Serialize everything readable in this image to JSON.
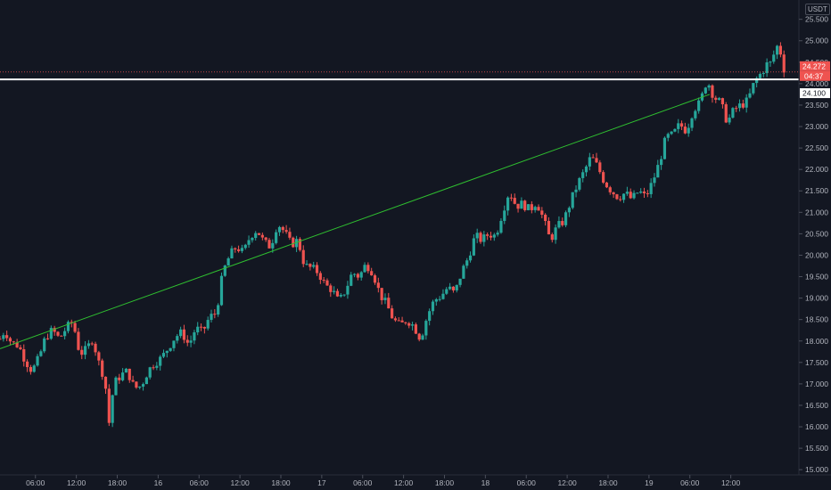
{
  "chart_data": {
    "type": "candlestick",
    "instrument_currency": "USDT",
    "y_axis": {
      "ylim": [
        14.9,
        25.95
      ],
      "ticks": [
        "15.000",
        "15.500",
        "16.000",
        "16.500",
        "17.000",
        "17.500",
        "18.000",
        "18.500",
        "19.000",
        "19.500",
        "20.000",
        "20.500",
        "21.000",
        "21.500",
        "22.000",
        "22.500",
        "23.000",
        "23.500",
        "24.000",
        "24.500",
        "25.000",
        "25.500"
      ],
      "position": "right"
    },
    "x_axis": {
      "ticks": [
        {
          "label": "06:00",
          "hour": 6
        },
        {
          "label": "12:00",
          "hour": 12
        },
        {
          "label": "18:00",
          "hour": 18
        },
        {
          "label": "16",
          "hour": 24
        },
        {
          "label": "06:00",
          "hour": 30
        },
        {
          "label": "12:00",
          "hour": 36
        },
        {
          "label": "18:00",
          "hour": 42
        },
        {
          "label": "17",
          "hour": 48
        },
        {
          "label": "06:00",
          "hour": 54
        },
        {
          "label": "12:00",
          "hour": 60
        },
        {
          "label": "18:00",
          "hour": 66
        },
        {
          "label": "18",
          "hour": 72
        },
        {
          "label": "06:00",
          "hour": 78
        },
        {
          "label": "12:00",
          "hour": 84
        },
        {
          "label": "18:00",
          "hour": 90
        },
        {
          "label": "19",
          "hour": 96
        },
        {
          "label": "06:00",
          "hour": 102
        },
        {
          "label": "12:00",
          "hour": 108
        }
      ],
      "xlim": [
        0.8,
        115.9
      ]
    },
    "price_path": [
      [
        0.8,
        18.05
      ],
      [
        1.5,
        18.25
      ],
      [
        2.5,
        17.95
      ],
      [
        3.5,
        17.9
      ],
      [
        4.5,
        17.55
      ],
      [
        5.5,
        17.3
      ],
      [
        6.5,
        17.6
      ],
      [
        7.5,
        18.1
      ],
      [
        8.5,
        18.25
      ],
      [
        9.5,
        18.05
      ],
      [
        10.5,
        18.3
      ],
      [
        11.5,
        18.45
      ],
      [
        12.5,
        17.7
      ],
      [
        13.5,
        17.8
      ],
      [
        14.5,
        18.1
      ],
      [
        15.0,
        17.6
      ],
      [
        15.7,
        17.35
      ],
      [
        16.3,
        16.9
      ],
      [
        16.8,
        16.1
      ],
      [
        17.5,
        17.0
      ],
      [
        18.5,
        17.2
      ],
      [
        19.5,
        17.3
      ],
      [
        20.5,
        16.9
      ],
      [
        21.5,
        16.95
      ],
      [
        22.5,
        17.3
      ],
      [
        23.5,
        17.5
      ],
      [
        24.5,
        17.6
      ],
      [
        25.5,
        17.85
      ],
      [
        26.5,
        18.1
      ],
      [
        27.5,
        18.2
      ],
      [
        28.5,
        17.9
      ],
      [
        29.5,
        18.3
      ],
      [
        30.5,
        18.2
      ],
      [
        31.5,
        18.55
      ],
      [
        32.5,
        18.65
      ],
      [
        33.5,
        19.6
      ],
      [
        34.5,
        20.0
      ],
      [
        35.5,
        20.2
      ],
      [
        36.5,
        20.05
      ],
      [
        37.5,
        20.45
      ],
      [
        38.5,
        20.6
      ],
      [
        39.5,
        20.3
      ],
      [
        40.5,
        20.2
      ],
      [
        41.5,
        20.75
      ],
      [
        42.5,
        20.55
      ],
      [
        43.5,
        20.25
      ],
      [
        44.5,
        20.35
      ],
      [
        45.5,
        19.75
      ],
      [
        46.5,
        19.7
      ],
      [
        47.5,
        19.6
      ],
      [
        48.5,
        19.3
      ],
      [
        49.5,
        19.2
      ],
      [
        50.5,
        18.9
      ],
      [
        51.5,
        19.2
      ],
      [
        52.5,
        19.6
      ],
      [
        53.5,
        19.5
      ],
      [
        54.5,
        19.8
      ],
      [
        55.5,
        19.6
      ],
      [
        56.5,
        19.1
      ],
      [
        57.5,
        18.85
      ],
      [
        58.5,
        18.5
      ],
      [
        59.5,
        18.35
      ],
      [
        60.5,
        18.5
      ],
      [
        61.5,
        18.35
      ],
      [
        62.5,
        18.05
      ],
      [
        63.5,
        18.6
      ],
      [
        64.5,
        18.95
      ],
      [
        65.5,
        19.05
      ],
      [
        66.5,
        19.25
      ],
      [
        67.5,
        19.1
      ],
      [
        68.5,
        19.6
      ],
      [
        69.5,
        19.95
      ],
      [
        70.5,
        20.45
      ],
      [
        71.5,
        20.35
      ],
      [
        72.5,
        20.5
      ],
      [
        73.5,
        20.45
      ],
      [
        74.5,
        21.0
      ],
      [
        75.5,
        21.5
      ],
      [
        76.5,
        21.15
      ],
      [
        77.5,
        21.2
      ],
      [
        78.5,
        21.05
      ],
      [
        79.5,
        21.25
      ],
      [
        80.5,
        20.85
      ],
      [
        81.5,
        20.35
      ],
      [
        82.5,
        20.65
      ],
      [
        83.5,
        20.8
      ],
      [
        84.5,
        21.25
      ],
      [
        85.5,
        21.65
      ],
      [
        86.5,
        21.95
      ],
      [
        87.5,
        22.3
      ],
      [
        88.5,
        22.05
      ],
      [
        89.5,
        21.7
      ],
      [
        90.5,
        21.5
      ],
      [
        91.5,
        21.35
      ],
      [
        92.5,
        21.45
      ],
      [
        93.5,
        21.3
      ],
      [
        94.5,
        21.5
      ],
      [
        95.5,
        21.35
      ],
      [
        96.5,
        21.7
      ],
      [
        97.5,
        22.15
      ],
      [
        98.5,
        22.75
      ],
      [
        99.5,
        22.8
      ],
      [
        100.5,
        23.05
      ],
      [
        101.5,
        22.9
      ],
      [
        102.5,
        23.4
      ],
      [
        103.5,
        23.55
      ],
      [
        104.5,
        24.1
      ],
      [
        105.5,
        23.7
      ],
      [
        106.5,
        23.55
      ],
      [
        107.5,
        23.1
      ],
      [
        108.5,
        23.4
      ],
      [
        109.5,
        23.5
      ],
      [
        110.5,
        23.6
      ],
      [
        111.5,
        24.05
      ],
      [
        112.5,
        24.25
      ],
      [
        113.5,
        24.5
      ],
      [
        114.0,
        24.45
      ],
      [
        114.6,
        24.9
      ],
      [
        115.2,
        24.8
      ],
      [
        115.9,
        24.272
      ]
    ],
    "annotations": {
      "trendline": {
        "from": [
          0.8,
          17.82
        ],
        "to": [
          104.9,
          23.75
        ],
        "color": "#2fbf30"
      },
      "horizontal_level": {
        "price": 24.1,
        "label": "24.100",
        "color": "#ffffff"
      },
      "last_price": {
        "price": 24.272,
        "label": "24.272",
        "countdown": "04:37",
        "color": "#ef5350"
      }
    },
    "colors": {
      "up": "#26a69a",
      "down": "#ef5350",
      "background": "#131722",
      "grid": "#1e222d",
      "axis_text": "#b2b5be"
    },
    "grid": false,
    "legend": "none"
  }
}
